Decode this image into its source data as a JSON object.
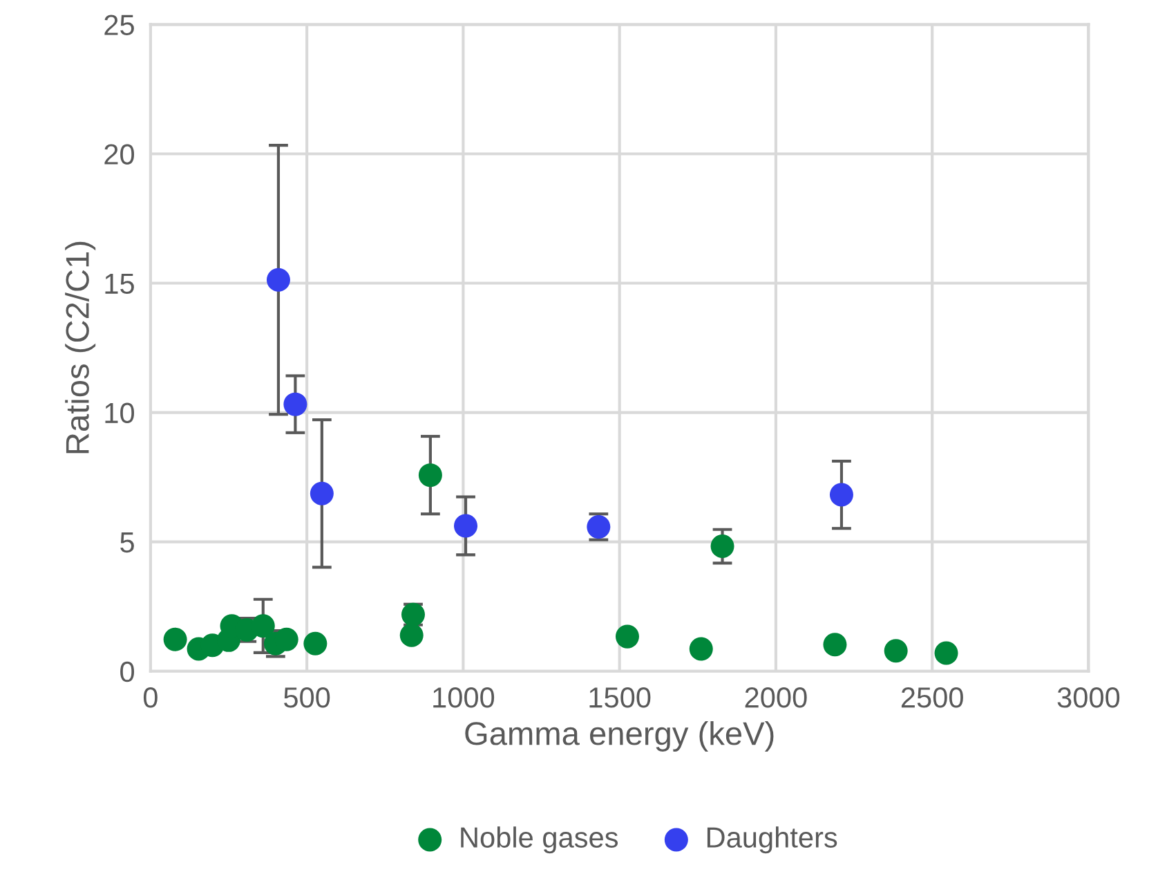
{
  "chart_data": {
    "type": "scatter",
    "xlabel": "Gamma energy (keV)",
    "ylabel": "Ratios (C2/C1)",
    "xlim": [
      0,
      3000
    ],
    "xticks": [
      0,
      500,
      1000,
      1500,
      2000,
      2500,
      3000
    ],
    "ylim": [
      0,
      25
    ],
    "yticks": [
      0,
      5,
      10,
      15,
      20,
      25
    ],
    "grid": true,
    "legend": "bottom",
    "marker": "circle",
    "series": [
      {
        "name": "Noble gases",
        "color": "#00873a",
        "x": [
          79,
          154,
          198,
          250,
          260,
          308,
          360,
          400,
          435,
          527,
          835,
          840,
          895,
          1525,
          1761,
          1829,
          2189,
          2384,
          2545
        ],
        "values": [
          1.23,
          0.86,
          1.0,
          1.2,
          1.75,
          1.6,
          1.75,
          1.07,
          1.23,
          1.07,
          1.39,
          2.19,
          7.58,
          1.34,
          0.86,
          4.83,
          1.03,
          0.79,
          0.7
        ],
        "errors": [
          null,
          null,
          null,
          null,
          null,
          0.45,
          1.03,
          0.5,
          null,
          null,
          null,
          0.4,
          1.5,
          null,
          null,
          0.65,
          null,
          null,
          null
        ]
      },
      {
        "name": "Daughters",
        "color": "#3540ee",
        "x": [
          409,
          463,
          548,
          1008,
          1433,
          2210
        ],
        "values": [
          15.13,
          10.32,
          6.87,
          5.62,
          5.58,
          6.82
        ],
        "errors": [
          5.2,
          1.1,
          2.85,
          1.12,
          0.5,
          1.3
        ]
      }
    ]
  }
}
